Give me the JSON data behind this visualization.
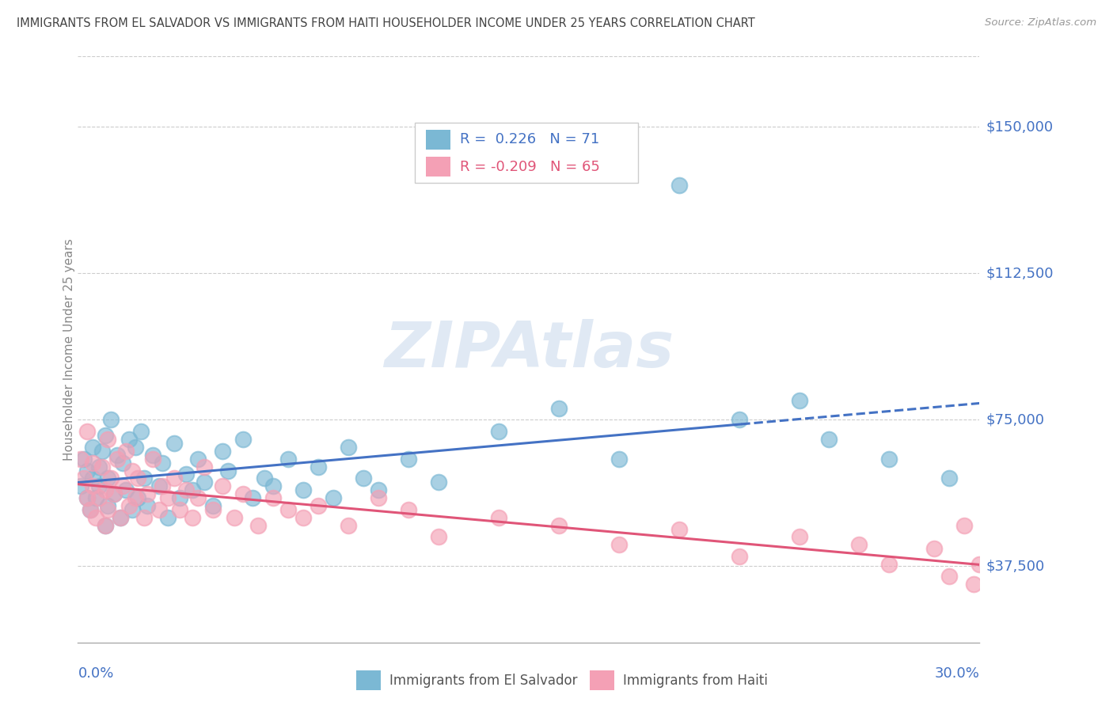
{
  "title": "IMMIGRANTS FROM EL SALVADOR VS IMMIGRANTS FROM HAITI HOUSEHOLDER INCOME UNDER 25 YEARS CORRELATION CHART",
  "source": "Source: ZipAtlas.com",
  "ylabel": "Householder Income Under 25 years",
  "xlim": [
    0,
    0.3
  ],
  "ylim": [
    18000,
    168000
  ],
  "el_salvador_color": "#7bb8d4",
  "haiti_color": "#f4a0b5",
  "el_salvador_line_color": "#4472c4",
  "haiti_line_color": "#e05578",
  "el_salvador_R": 0.226,
  "el_salvador_N": 71,
  "haiti_R": -0.209,
  "haiti_N": 65,
  "legend_label_es": "Immigrants from El Salvador",
  "legend_label_ht": "Immigrants from Haiti",
  "watermark": "ZIPAtlas",
  "background_color": "#ffffff",
  "grid_color": "#cccccc",
  "title_color": "#444444",
  "axis_label_color": "#4472c4",
  "el_salvador_scatter_x": [
    0.001,
    0.002,
    0.003,
    0.003,
    0.004,
    0.005,
    0.005,
    0.006,
    0.007,
    0.007,
    0.008,
    0.009,
    0.009,
    0.01,
    0.01,
    0.011,
    0.012,
    0.013,
    0.014,
    0.015,
    0.016,
    0.017,
    0.018,
    0.019,
    0.02,
    0.021,
    0.022,
    0.023,
    0.025,
    0.027,
    0.028,
    0.03,
    0.032,
    0.034,
    0.036,
    0.038,
    0.04,
    0.042,
    0.045,
    0.048,
    0.05,
    0.055,
    0.058,
    0.062,
    0.065,
    0.07,
    0.075,
    0.08,
    0.085,
    0.09,
    0.095,
    0.1,
    0.11,
    0.12,
    0.14,
    0.16,
    0.18,
    0.2,
    0.22,
    0.24,
    0.25,
    0.27,
    0.29
  ],
  "el_salvador_scatter_y": [
    58000,
    65000,
    55000,
    62000,
    52000,
    68000,
    60000,
    55000,
    58000,
    63000,
    67000,
    48000,
    71000,
    53000,
    60000,
    75000,
    56000,
    66000,
    50000,
    64000,
    57000,
    70000,
    52000,
    68000,
    55000,
    72000,
    60000,
    53000,
    66000,
    58000,
    64000,
    50000,
    69000,
    55000,
    61000,
    57000,
    65000,
    59000,
    53000,
    67000,
    62000,
    70000,
    55000,
    60000,
    58000,
    65000,
    57000,
    63000,
    55000,
    68000,
    60000,
    57000,
    65000,
    59000,
    72000,
    78000,
    65000,
    135000,
    75000,
    80000,
    70000,
    65000,
    60000
  ],
  "haiti_scatter_x": [
    0.001,
    0.002,
    0.003,
    0.003,
    0.004,
    0.005,
    0.005,
    0.006,
    0.007,
    0.008,
    0.009,
    0.009,
    0.01,
    0.01,
    0.011,
    0.012,
    0.013,
    0.014,
    0.015,
    0.016,
    0.017,
    0.018,
    0.019,
    0.02,
    0.022,
    0.023,
    0.025,
    0.027,
    0.028,
    0.03,
    0.032,
    0.034,
    0.036,
    0.038,
    0.04,
    0.042,
    0.045,
    0.048,
    0.052,
    0.055,
    0.06,
    0.065,
    0.07,
    0.075,
    0.08,
    0.09,
    0.1,
    0.11,
    0.12,
    0.14,
    0.16,
    0.18,
    0.2,
    0.22,
    0.24,
    0.26,
    0.27,
    0.285,
    0.29,
    0.295,
    0.298,
    0.3
  ],
  "haiti_scatter_y": [
    65000,
    60000,
    72000,
    55000,
    52000,
    58000,
    64000,
    50000,
    55000,
    63000,
    48000,
    57000,
    70000,
    52000,
    60000,
    56000,
    65000,
    50000,
    58000,
    67000,
    53000,
    62000,
    55000,
    60000,
    50000,
    56000,
    65000,
    52000,
    58000,
    55000,
    60000,
    52000,
    57000,
    50000,
    55000,
    63000,
    52000,
    58000,
    50000,
    56000,
    48000,
    55000,
    52000,
    50000,
    53000,
    48000,
    55000,
    52000,
    45000,
    50000,
    48000,
    43000,
    47000,
    40000,
    45000,
    43000,
    38000,
    42000,
    35000,
    48000,
    33000,
    38000
  ]
}
